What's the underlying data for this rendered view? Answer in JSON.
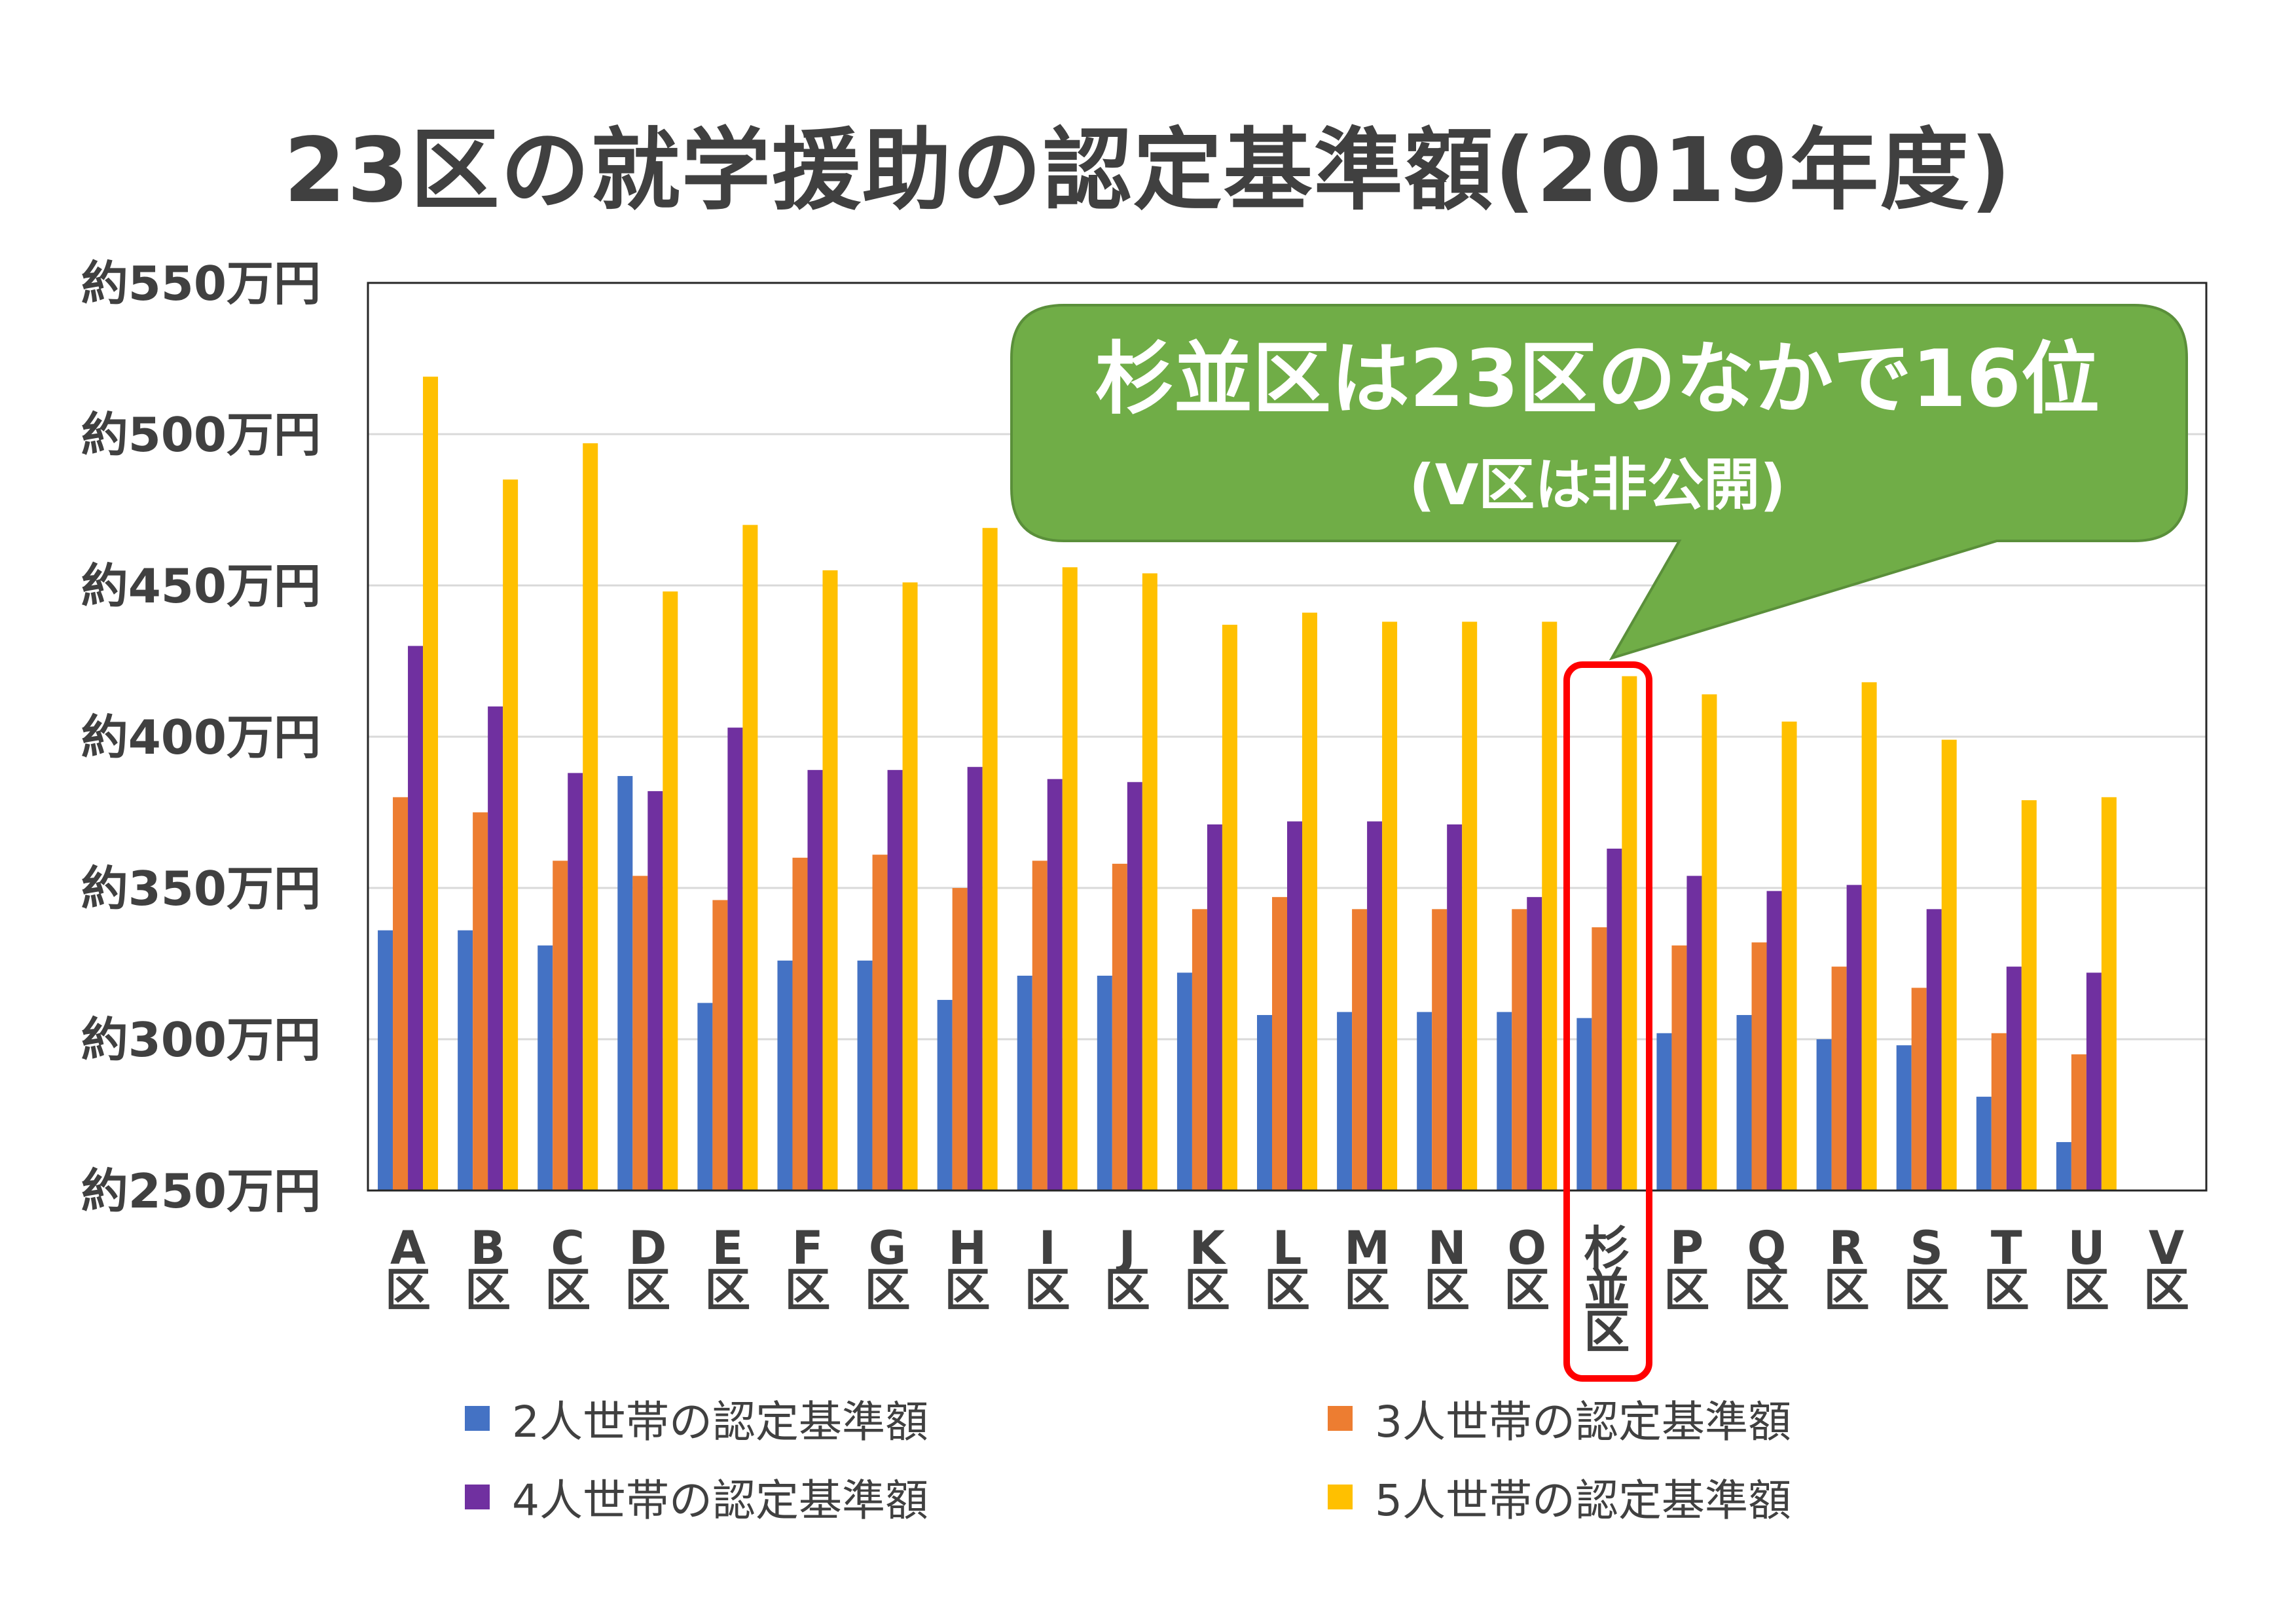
{
  "title": "23区の就学援助の認定基準額(2019年度)",
  "callout": {
    "line1": "杉並区は23区のなかで16位",
    "line2": "(V区は非公開)",
    "color": "#70AD47"
  },
  "highlight_color": "#FF0000",
  "chart_data": {
    "type": "bar",
    "title": "23区の就学援助の認定基準額(2019年度)",
    "ylim": [
      250,
      550
    ],
    "yticks": [
      250,
      300,
      350,
      400,
      450,
      500,
      550
    ],
    "ytick_labels": [
      "約250万円",
      "約300万円",
      "約350万円",
      "約400万円",
      "約450万円",
      "約500万円",
      "約550万円"
    ],
    "grid": true,
    "legend_position": "bottom",
    "categories": [
      "A区",
      "B区",
      "C区",
      "D区",
      "E区",
      "F区",
      "G区",
      "H区",
      "I区",
      "J区",
      "K区",
      "L区",
      "M区",
      "N区",
      "O区",
      "杉並区",
      "P区",
      "Q区",
      "R区",
      "S区",
      "T区",
      "U区",
      "V区"
    ],
    "highlight_category": "杉並区",
    "series": [
      {
        "name": "2人世帯の認定基準額",
        "color": "#4472C4",
        "values": [
          336,
          336,
          331,
          387,
          312,
          326,
          326,
          313,
          321,
          321,
          322,
          308,
          309,
          309,
          309,
          307,
          302,
          308,
          300,
          298,
          281,
          266,
          null
        ]
      },
      {
        "name": "3人世帯の認定基準額",
        "color": "#ED7D31",
        "values": [
          380,
          375,
          359,
          354,
          346,
          360,
          361,
          350,
          359,
          358,
          343,
          347,
          343,
          343,
          343,
          337,
          331,
          332,
          324,
          317,
          302,
          295,
          null
        ]
      },
      {
        "name": "4人世帯の認定基準額",
        "color": "#7030A0",
        "values": [
          430,
          410,
          388,
          382,
          403,
          389,
          389,
          390,
          386,
          385,
          371,
          372,
          372,
          371,
          347,
          363,
          354,
          349,
          351,
          343,
          324,
          322,
          null
        ]
      },
      {
        "name": "5人世帯の認定基準額",
        "color": "#FFC000",
        "values": [
          519,
          485,
          497,
          448,
          470,
          455,
          451,
          469,
          456,
          454,
          437,
          441,
          438,
          438,
          438,
          420,
          414,
          405,
          418,
          399,
          379,
          380,
          null
        ]
      }
    ]
  }
}
